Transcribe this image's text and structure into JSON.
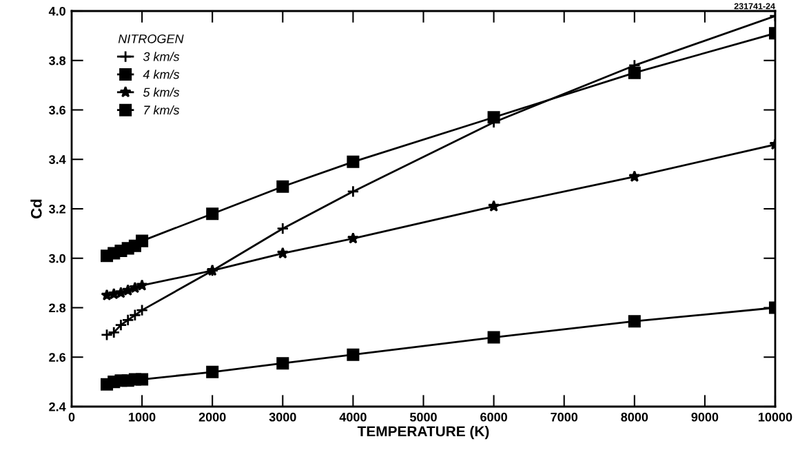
{
  "chart_data": {
    "type": "line",
    "xlabel": "TEMPERATURE (K)",
    "ylabel": "Cd",
    "legend_title": "NITROGEN",
    "legend": "top left",
    "grid": false,
    "line_style": "solid",
    "x": [
      500,
      600,
      700,
      800,
      900,
      1000,
      2000,
      3000,
      4000,
      6000,
      8000,
      10000
    ],
    "series": [
      {
        "name": "3 km/s",
        "color": "#000000",
        "marker": "cross",
        "values": [
          2.69,
          2.7,
          2.73,
          2.75,
          2.77,
          2.79,
          2.95,
          3.12,
          3.27,
          3.55,
          3.78,
          3.98
        ]
      },
      {
        "name": "4 km/s",
        "color": "#000000",
        "marker": "square",
        "values": [
          3.01,
          3.02,
          3.03,
          3.04,
          3.05,
          3.07,
          3.18,
          3.29,
          3.39,
          3.57,
          3.75,
          3.91
        ]
      },
      {
        "name": "5 km/s",
        "color": "#000000",
        "marker": "star",
        "values": [
          2.85,
          2.855,
          2.86,
          2.87,
          2.88,
          2.89,
          2.95,
          3.02,
          3.08,
          3.21,
          3.33,
          3.46
        ]
      },
      {
        "name": "7 km/s",
        "color": "#000000",
        "marker": "square",
        "values": [
          2.49,
          2.5,
          2.505,
          2.505,
          2.51,
          2.51,
          2.54,
          2.575,
          2.61,
          2.68,
          2.745,
          2.8
        ]
      }
    ],
    "xlim": [
      0,
      10000
    ],
    "xticks": [
      0,
      1000,
      2000,
      3000,
      4000,
      5000,
      6000,
      7000,
      8000,
      9000,
      10000
    ],
    "ylim": [
      2.4,
      4.0
    ],
    "yticks": [
      {
        "value": 2.4,
        "label": "2.4"
      },
      {
        "value": 2.6,
        "label": "2.6"
      },
      {
        "value": 2.8,
        "label": "2.8"
      },
      {
        "value": 3.0,
        "label": "3.0"
      },
      {
        "value": 3.2,
        "label": "3.2"
      },
      {
        "value": 3.4,
        "label": "3.4"
      },
      {
        "value": 3.6,
        "label": "3.6"
      },
      {
        "value": 3.8,
        "label": "3.8"
      },
      {
        "value": 4.0,
        "label": "4.0"
      }
    ],
    "annotations": [
      "231741-24"
    ]
  }
}
